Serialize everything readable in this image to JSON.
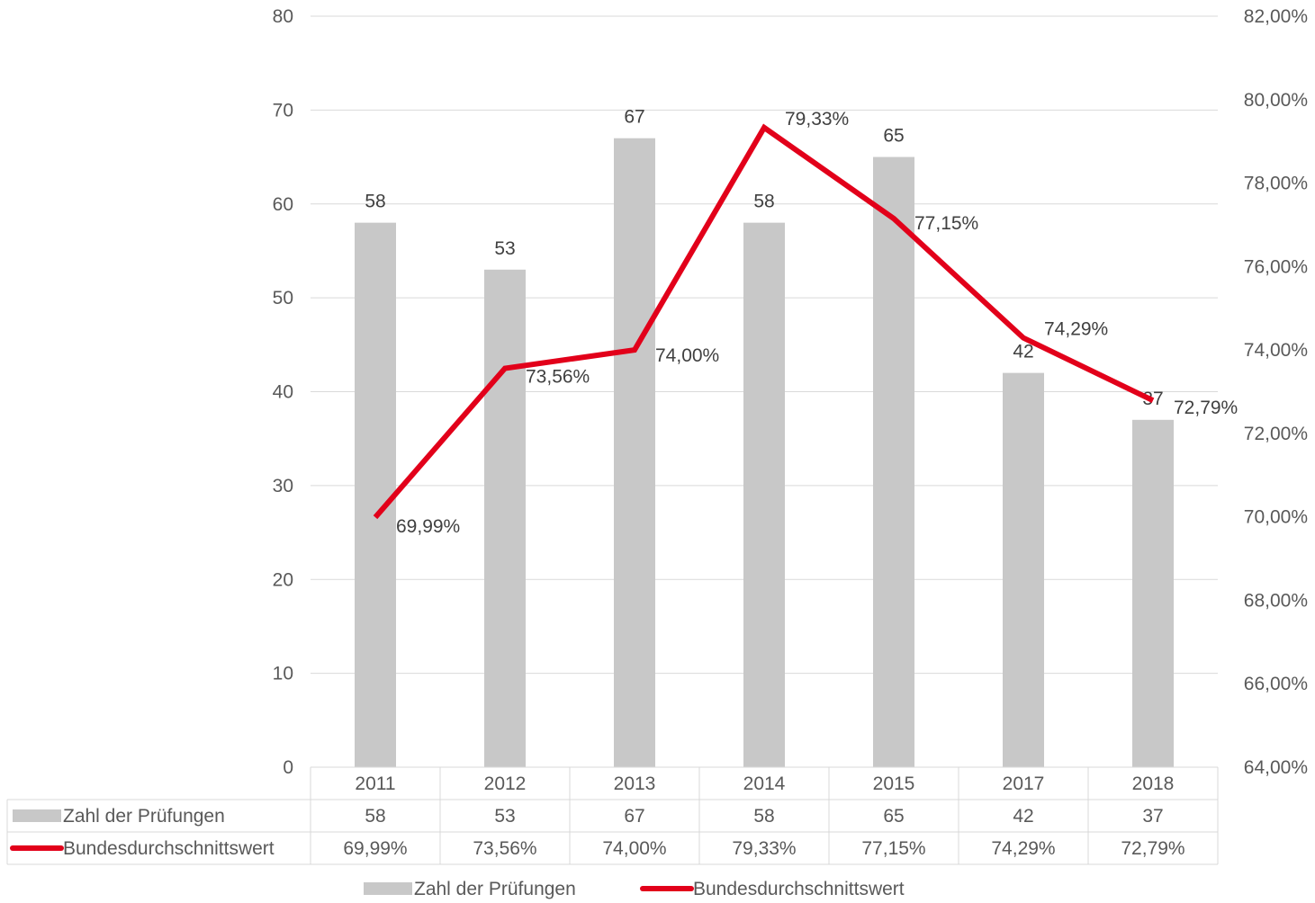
{
  "chart_data": {
    "type": "bar",
    "categories": [
      "2011",
      "2012",
      "2013",
      "2014",
      "2015",
      "2017",
      "2018"
    ],
    "series": [
      {
        "name": "Zahl der Prüfungen",
        "type": "bar",
        "axis": "left",
        "values": [
          58,
          53,
          67,
          58,
          65,
          42,
          37
        ],
        "labels": [
          "58",
          "53",
          "67",
          "58",
          "65",
          "42",
          "37"
        ],
        "color": "#c8c8c8"
      },
      {
        "name": "Bundesdurchschnittswert",
        "type": "line",
        "axis": "right",
        "values": [
          69.99,
          73.56,
          74.0,
          79.33,
          77.15,
          74.29,
          72.79
        ],
        "labels": [
          "69,99%",
          "73,56%",
          "74,00%",
          "79,33%",
          "77,15%",
          "74,29%",
          "72,79%"
        ],
        "color": "#e2001a"
      }
    ],
    "y_left": {
      "lim": [
        0,
        80
      ],
      "ticks": [
        "0",
        "10",
        "20",
        "30",
        "40",
        "50",
        "60",
        "70",
        "80"
      ]
    },
    "y_right": {
      "lim": [
        64,
        82
      ],
      "ticks": [
        "64,00%",
        "66,00%",
        "68,00%",
        "70,00%",
        "72,00%",
        "74,00%",
        "76,00%",
        "78,00%",
        "80,00%",
        "82,00%"
      ]
    },
    "grid": true,
    "legend": "bottom",
    "data_table": true
  }
}
